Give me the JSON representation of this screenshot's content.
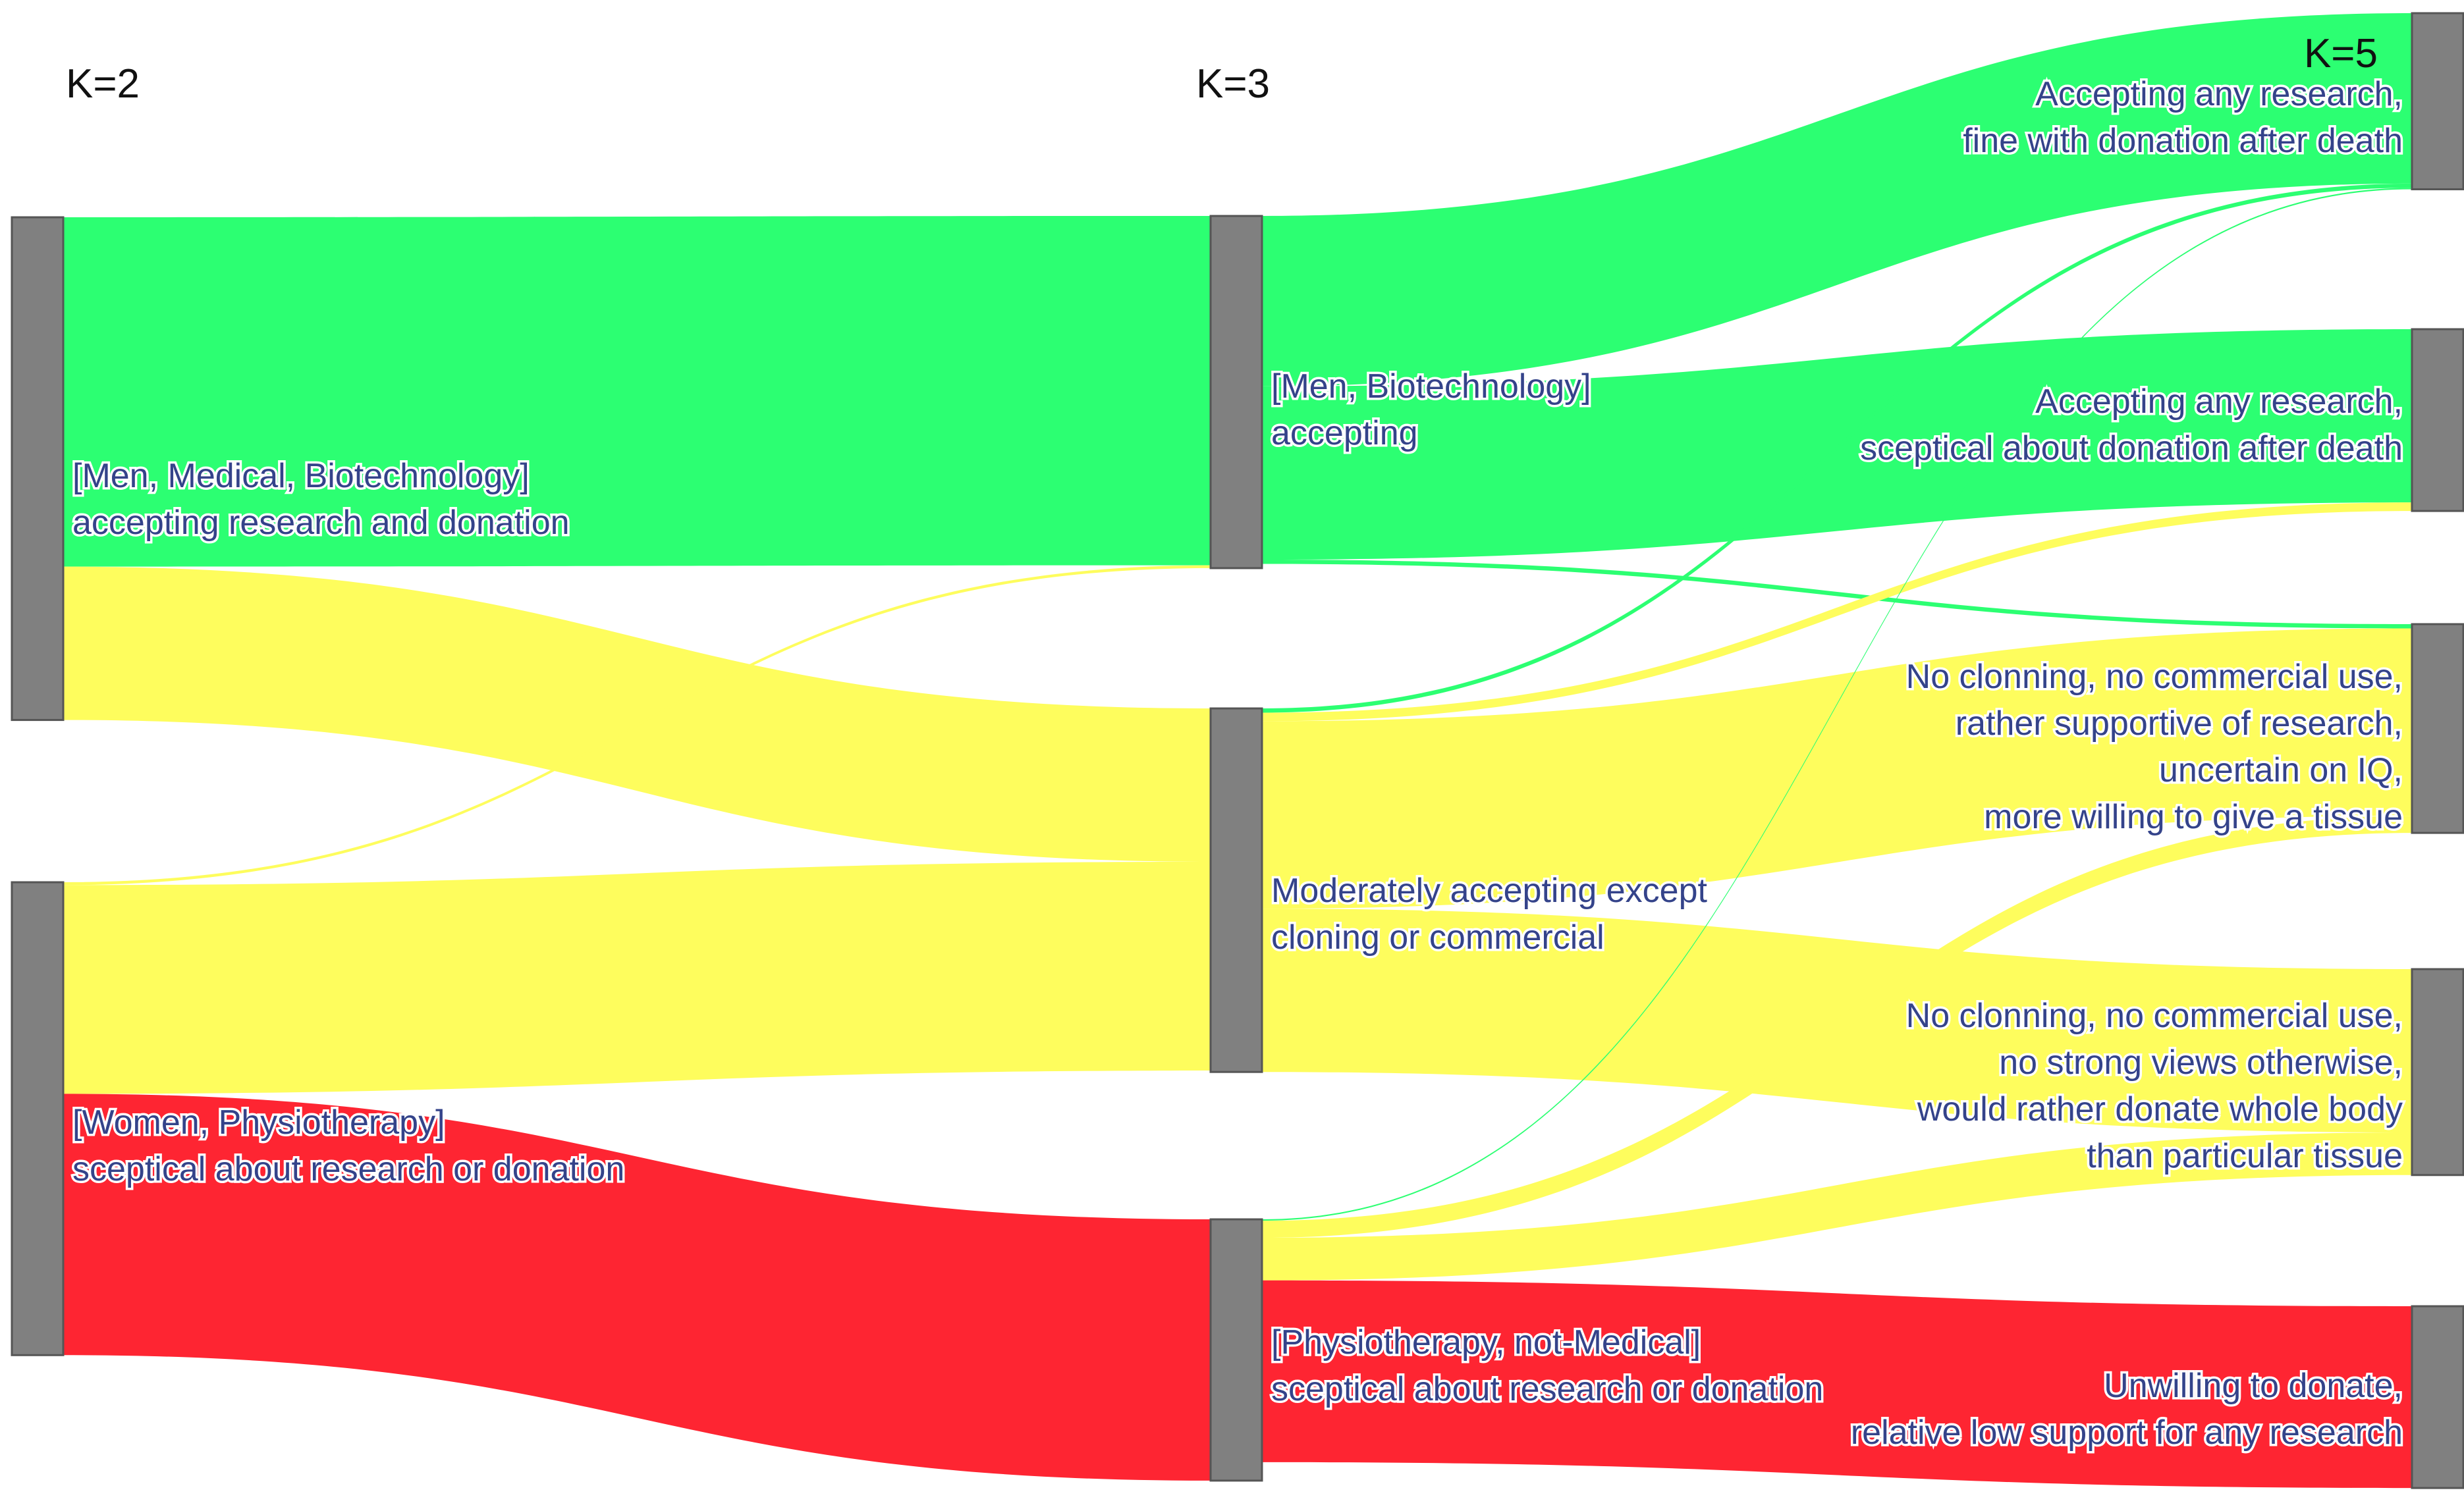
{
  "chart_data": {
    "type": "sankey",
    "columns": [
      "K=2",
      "K=3",
      "K=5"
    ],
    "colors": {
      "accepting": "#2cff72",
      "moderate": "#fefd5d",
      "sceptical": "#fe2532",
      "node": "#808080",
      "label": "#34438a"
    },
    "nodes": [
      {
        "id": "k2a",
        "column": 0,
        "lines": [
          "[Men, Medical, Biotechnology]",
          "accepting research and donation"
        ]
      },
      {
        "id": "k2b",
        "column": 0,
        "lines": [
          "[Women, Physiotherapy]",
          "sceptical about research or donation"
        ]
      },
      {
        "id": "k3a",
        "column": 1,
        "lines": [
          "[Men, Biotechnology]",
          "accepting"
        ]
      },
      {
        "id": "k3b",
        "column": 1,
        "lines": [
          "Moderately accepting except",
          "cloning or commercial"
        ]
      },
      {
        "id": "k3c",
        "column": 1,
        "lines": [
          "[Physiotherapy, not-Medical]",
          "sceptical about research or donation"
        ]
      },
      {
        "id": "k5a",
        "column": 2,
        "lines": [
          "Accepting any research,",
          "fine with donation after death"
        ]
      },
      {
        "id": "k5b",
        "column": 2,
        "lines": [
          "Accepting any research,",
          "sceptical about donation after death"
        ]
      },
      {
        "id": "k5c",
        "column": 2,
        "lines": [
          "No clonning, no commercial use,",
          "rather supportive of research,",
          "uncertain on IQ,",
          "more willing to give a tissue"
        ]
      },
      {
        "id": "k5d",
        "column": 2,
        "lines": [
          "No clonning, no commercial use,",
          "no strong views otherwise,",
          "would rather donate whole body",
          "than particular tissue"
        ]
      },
      {
        "id": "k5e",
        "column": 2,
        "lines": [
          "Unwilling to donate,",
          "relative low support for any research"
        ]
      }
    ],
    "links": [
      {
        "source": "k2a",
        "target": "k3a",
        "value": 246,
        "color": "accepting"
      },
      {
        "source": "k2a",
        "target": "k3b",
        "value": 108,
        "color": "moderate"
      },
      {
        "source": "k2b",
        "target": "k3a",
        "value": 2,
        "color": "moderate"
      },
      {
        "source": "k2b",
        "target": "k3b",
        "value": 147,
        "color": "moderate"
      },
      {
        "source": "k2b",
        "target": "k3c",
        "value": 184,
        "color": "sceptical"
      },
      {
        "source": "k3a",
        "target": "k5a",
        "value": 120,
        "color": "accepting"
      },
      {
        "source": "k3a",
        "target": "k5b",
        "value": 122,
        "color": "accepting"
      },
      {
        "source": "k3a",
        "target": "k5c",
        "value": 3,
        "color": "accepting"
      },
      {
        "source": "k3b",
        "target": "k5a",
        "value": 3,
        "color": "accepting"
      },
      {
        "source": "k3b",
        "target": "k5b",
        "value": 6,
        "color": "moderate"
      },
      {
        "source": "k3b",
        "target": "k5c",
        "value": 132,
        "color": "moderate"
      },
      {
        "source": "k3b",
        "target": "k5d",
        "value": 115,
        "color": "moderate"
      },
      {
        "source": "k3c",
        "target": "k5a",
        "value": 1,
        "color": "accepting"
      },
      {
        "source": "k3c",
        "target": "k5c",
        "value": 12,
        "color": "moderate"
      },
      {
        "source": "k3c",
        "target": "k5d",
        "value": 30,
        "color": "moderate"
      },
      {
        "source": "k3c",
        "target": "k5e",
        "value": 128,
        "color": "sceptical"
      }
    ]
  }
}
